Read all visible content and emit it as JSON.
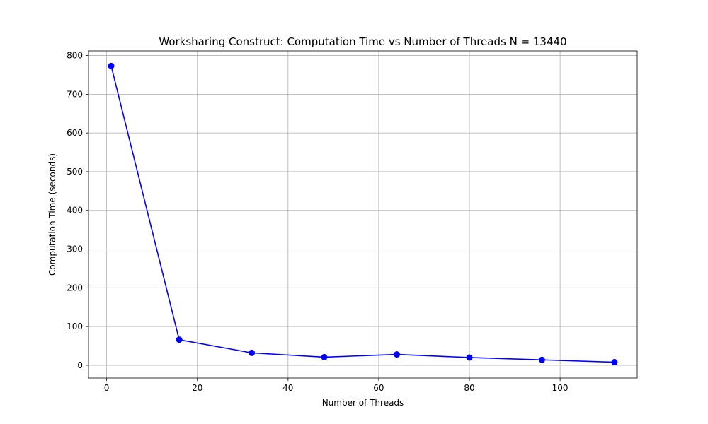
{
  "chart_data": {
    "type": "line",
    "title": "Worksharing Construct: Computation Time vs Number of Threads N = 13440",
    "xlabel": "Number of Threads",
    "ylabel": "Computation Time (seconds)",
    "xlim": [
      -4,
      117
    ],
    "ylim": [
      -33,
      812
    ],
    "x_ticks": [
      0,
      20,
      40,
      60,
      80,
      100
    ],
    "y_ticks": [
      0,
      100,
      200,
      300,
      400,
      500,
      600,
      700,
      800
    ],
    "grid": true,
    "series": [
      {
        "color": "#0000ff",
        "marker": "circle",
        "x": [
          1,
          16,
          32,
          48,
          64,
          80,
          96,
          112
        ],
        "y": [
          773,
          66,
          32,
          21,
          28,
          20,
          14,
          8
        ]
      }
    ]
  }
}
